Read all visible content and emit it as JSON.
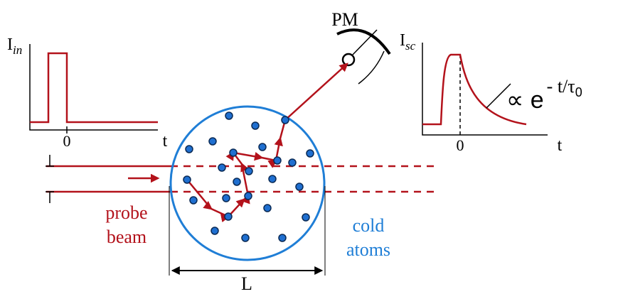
{
  "left_plot": {
    "y_label": "I",
    "y_label_sub": "in",
    "x_tick": "0",
    "x_label": "t"
  },
  "detector": {
    "label": "PM"
  },
  "right_plot": {
    "y_label": "I",
    "y_label_sub": "sc",
    "x_tick": "0",
    "x_label": "t",
    "formula_base": "∝ e",
    "formula_exponent": "- t/τ",
    "formula_exponent_sub": "0"
  },
  "probe_beam": {
    "label_lines": [
      "probe",
      "beam"
    ]
  },
  "atoms": {
    "label_lines": [
      "cold",
      "atoms"
    ]
  },
  "length_label": "L"
}
